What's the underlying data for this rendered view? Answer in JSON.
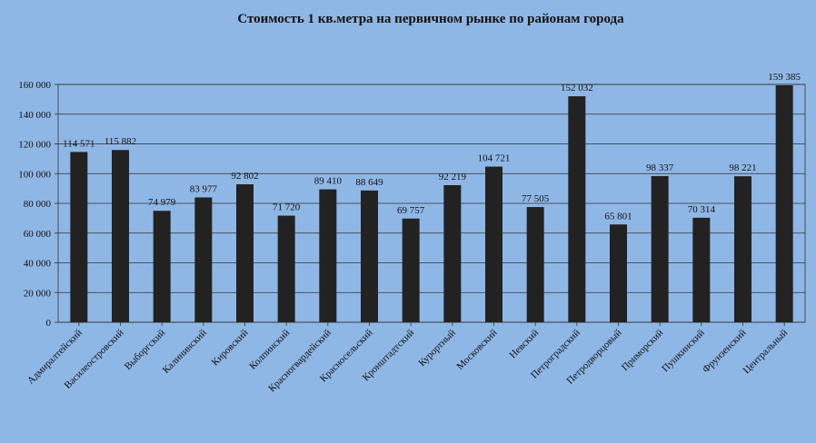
{
  "chart_data": {
    "type": "bar",
    "title": "Стоимость 1 кв.метра на первичном  рынке по районам  города",
    "xlabel": "",
    "ylabel": "",
    "ylim": [
      0,
      160000
    ],
    "yticks": [
      "0",
      "20 000",
      "40 000",
      "60 000",
      "80 000",
      "100 000",
      "120 000",
      "140 000",
      "160 000"
    ],
    "grid": true,
    "legend": "none",
    "bar_color": "#222222",
    "background_color": "#8fb7e6",
    "categories": [
      "Адмиралтейский",
      "Василеостровский",
      "Выборгский",
      "Калининский",
      "Кировский",
      "Колпинский",
      "Красногвардейский",
      "Красносельский",
      "Кронштадтский",
      "Курортный",
      "Московский",
      "Невский",
      "Петроградский",
      "Петродворцовый",
      "Приморский",
      "Пушкинский",
      "Фрунзенский",
      "Центральный"
    ],
    "values": [
      114571,
      115882,
      74979,
      83977,
      92802,
      71720,
      89410,
      88649,
      69757,
      92219,
      104721,
      77505,
      152032,
      65801,
      98337,
      70314,
      98221,
      159385
    ],
    "data_labels": [
      "114 571",
      "115 882",
      "74 979",
      "83 977",
      "92 802",
      "71 720",
      "89 410",
      "88 649",
      "69 757",
      "92 219",
      "104 721",
      "77 505",
      "152 032",
      "65 801",
      "98 337",
      "70 314",
      "98 221",
      "159 385"
    ]
  }
}
